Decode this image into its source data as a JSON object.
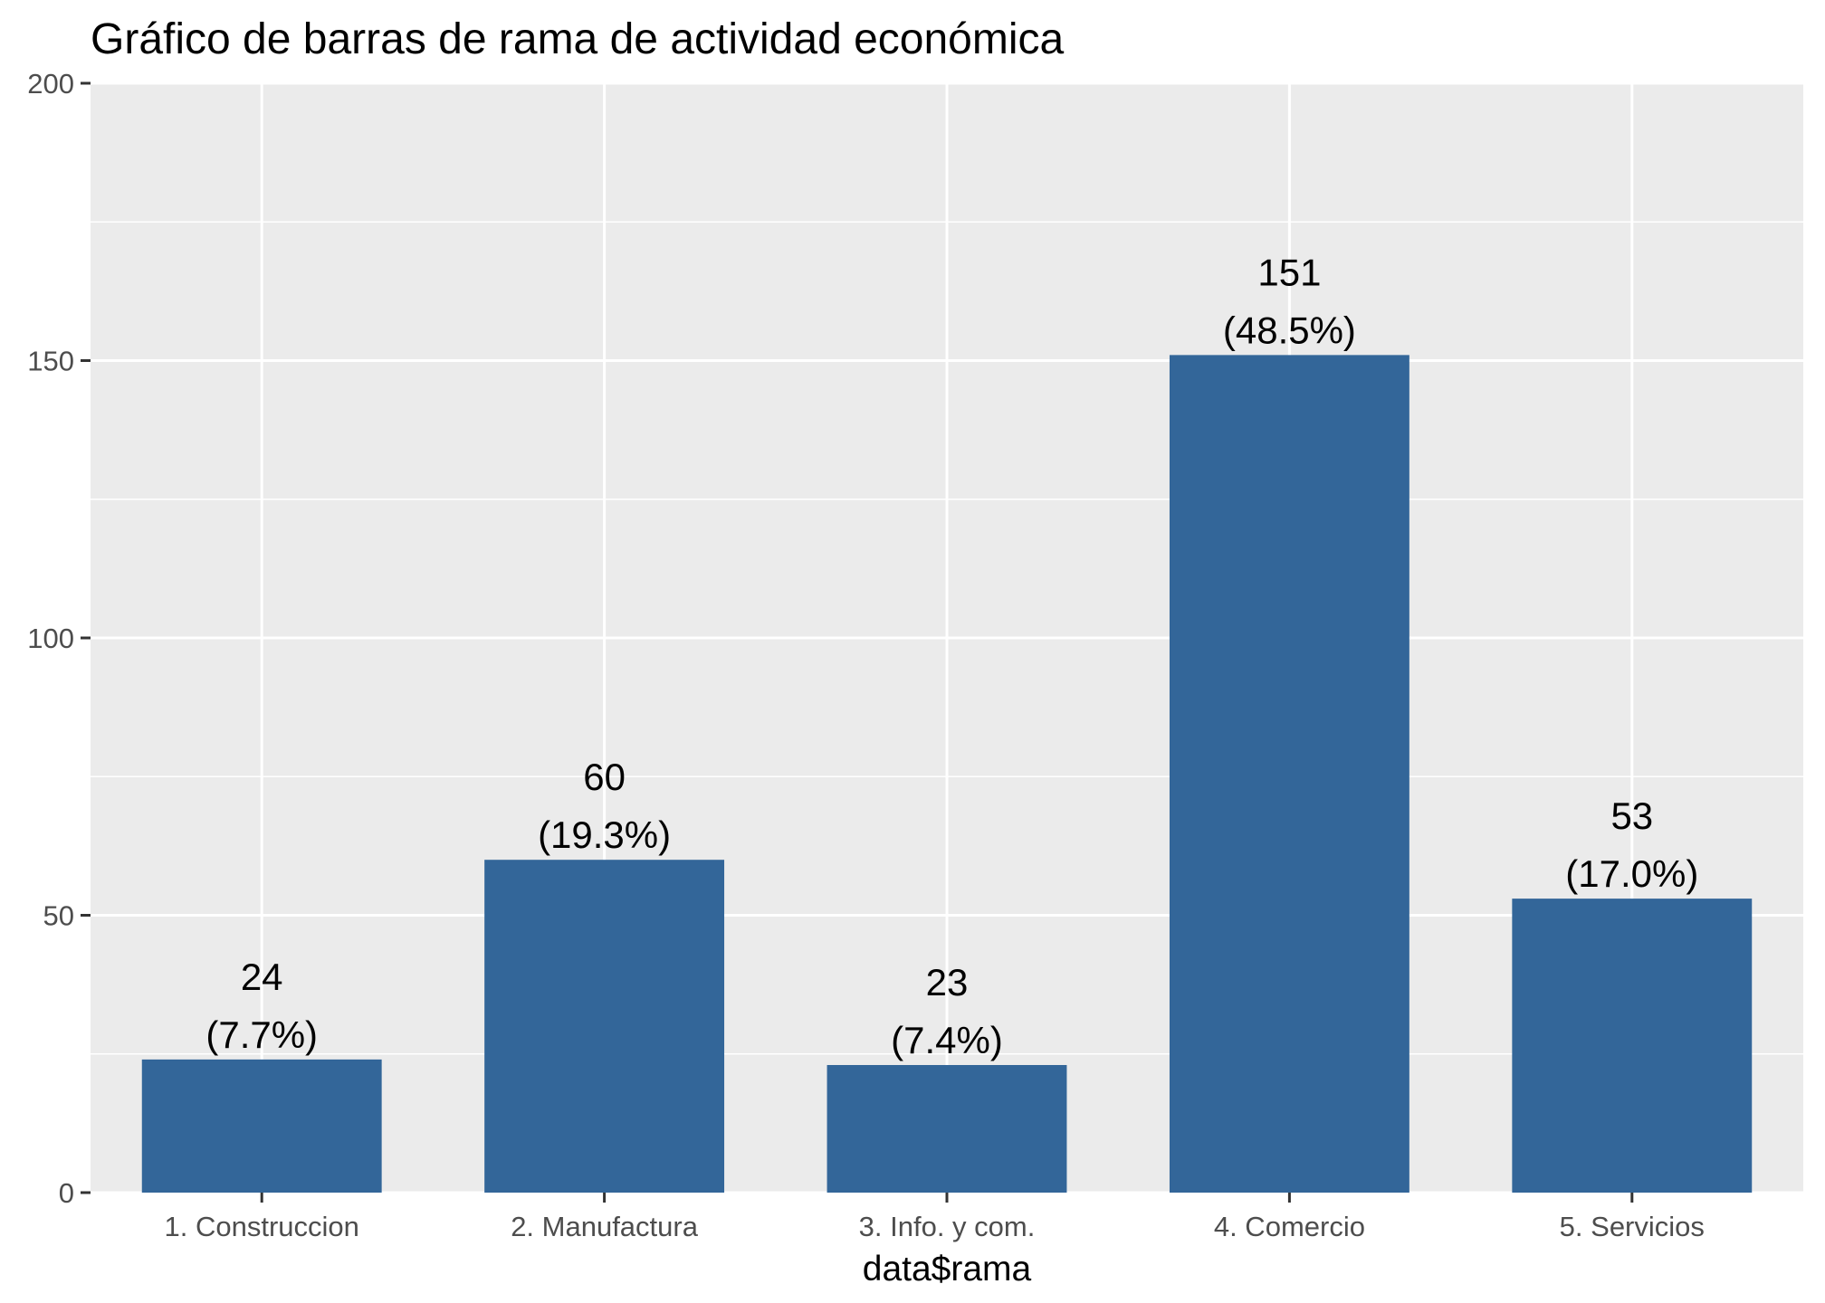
{
  "chart_data": {
    "type": "bar",
    "title": "Gráfico de barras de rama de actividad económica",
    "xlabel": "data$rama",
    "ylabel": "",
    "categories": [
      "1. Construccion",
      "2. Manufactura",
      "3. Info. y com.",
      "4. Comercio",
      "5. Servicios"
    ],
    "values": [
      24,
      60,
      23,
      151,
      53
    ],
    "value_labels": [
      "24",
      "60",
      "23",
      "151",
      "53"
    ],
    "percent_labels": [
      "(7.7%)",
      "(19.3%)",
      "(7.4%)",
      "(48.5%)",
      "(17.0%)"
    ],
    "ylim": [
      0,
      200
    ],
    "yticks": [
      0,
      50,
      100,
      150,
      200
    ],
    "ytick_labels": [
      "0",
      "50",
      "100",
      "150",
      "200"
    ],
    "grid": true,
    "legend": "none",
    "colors": {
      "bar": "#336699",
      "panel": "#ebebeb",
      "grid": "#ffffff",
      "axis_tick": "#333333",
      "tick_text": "#4d4d4d"
    }
  }
}
